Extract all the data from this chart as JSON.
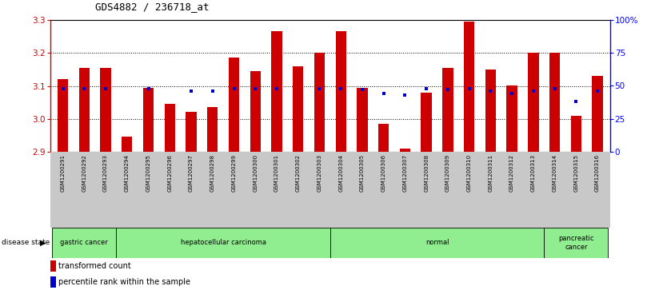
{
  "title": "GDS4882 / 236718_at",
  "samples": [
    "GSM1200291",
    "GSM1200292",
    "GSM1200293",
    "GSM1200294",
    "GSM1200295",
    "GSM1200296",
    "GSM1200297",
    "GSM1200298",
    "GSM1200299",
    "GSM1200300",
    "GSM1200301",
    "GSM1200302",
    "GSM1200303",
    "GSM1200304",
    "GSM1200305",
    "GSM1200306",
    "GSM1200307",
    "GSM1200308",
    "GSM1200309",
    "GSM1200310",
    "GSM1200311",
    "GSM1200312",
    "GSM1200313",
    "GSM1200314",
    "GSM1200315",
    "GSM1200316"
  ],
  "bar_values": [
    3.12,
    3.155,
    3.155,
    2.945,
    3.095,
    3.045,
    3.02,
    3.035,
    3.185,
    3.145,
    3.265,
    3.16,
    3.2,
    3.265,
    3.095,
    2.985,
    2.91,
    3.08,
    3.155,
    3.295,
    3.15,
    3.1,
    3.2,
    3.2,
    3.01,
    3.13
  ],
  "percentile_values": [
    48,
    48,
    48,
    null,
    48,
    null,
    46,
    46,
    48,
    48,
    48,
    null,
    48,
    48,
    47,
    44,
    43,
    48,
    47,
    48,
    46,
    44,
    46,
    48,
    38,
    46
  ],
  "groups": [
    {
      "label": "gastric cancer",
      "start": 0,
      "end": 2
    },
    {
      "label": "hepatocellular carcinoma",
      "start": 3,
      "end": 12
    },
    {
      "label": "normal",
      "start": 13,
      "end": 22
    },
    {
      "label": "pancreatic\ncancer",
      "start": 23,
      "end": 25
    }
  ],
  "ylim": [
    2.9,
    3.3
  ],
  "yticks": [
    2.9,
    3.0,
    3.1,
    3.2,
    3.3
  ],
  "right_ylim": [
    0,
    100
  ],
  "right_yticks": [
    0,
    25,
    50,
    75,
    100
  ],
  "right_yticklabels": [
    "0",
    "25",
    "50",
    "75",
    "100%"
  ],
  "bar_color": "#CC0000",
  "dot_color": "#0000CC",
  "bar_width": 0.5,
  "bg_color": "#FFFFFF",
  "label_bg": "#C8C8C8",
  "green_color": "#90EE90",
  "n_bars": 26,
  "xlim_lo": -0.6,
  "xlim_hi": 25.6
}
